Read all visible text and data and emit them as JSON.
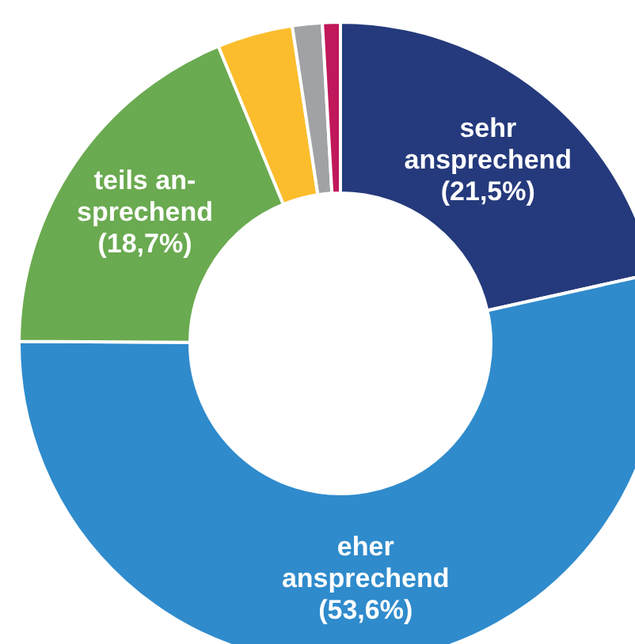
{
  "chart_data": {
    "type": "donut",
    "categories": [
      "sehr ansprechend",
      "eher ansprechend",
      "teils an- sprechend",
      null,
      null,
      null
    ],
    "values": [
      21.5,
      53.6,
      18.7,
      3.8,
      1.5,
      0.9
    ],
    "colors": [
      "#253a7c",
      "#2f8bcc",
      "#6aaa50",
      "#fbbd2c",
      "#a0a2a5",
      "#c0185a"
    ],
    "value_labels": [
      "(21,5%)",
      "(53,6%)",
      "(18,7%)",
      null,
      null,
      null
    ]
  }
}
